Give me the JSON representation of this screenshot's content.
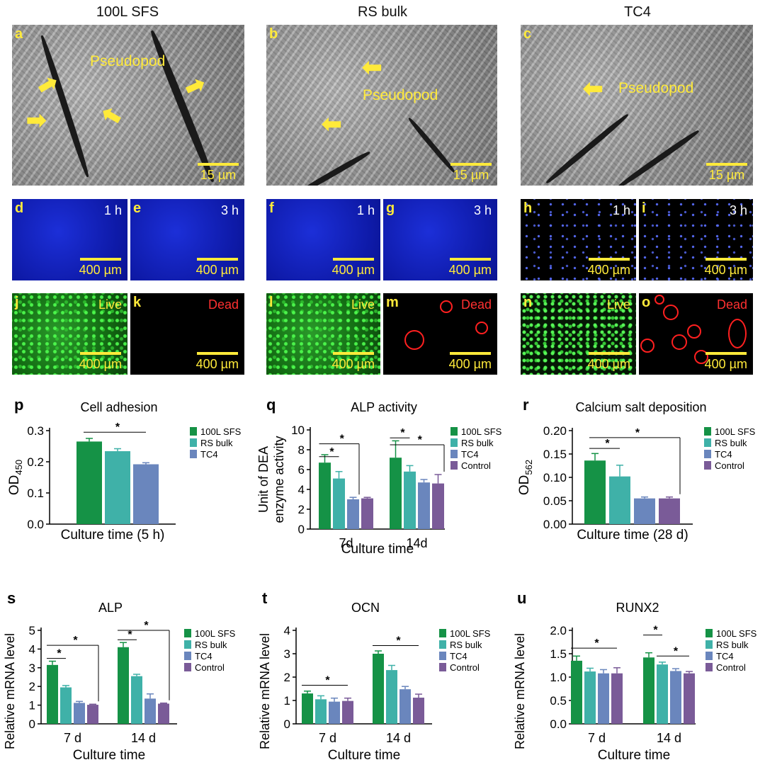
{
  "columns": [
    "100L SFS",
    "RS bulk",
    "TC4"
  ],
  "sem_panels": [
    {
      "label": "a",
      "text": "Pseudopod",
      "scale": "15 µm"
    },
    {
      "label": "b",
      "text": "Pseudopod",
      "scale": "15 µm"
    },
    {
      "label": "c",
      "text": "Pseudopod",
      "scale": "15 µm"
    }
  ],
  "fluor_panels": [
    {
      "label": "d",
      "time": "1 h",
      "scale": "400 µm"
    },
    {
      "label": "e",
      "time": "3 h",
      "scale": "400 µm"
    },
    {
      "label": "f",
      "time": "1 h",
      "scale": "400 µm"
    },
    {
      "label": "g",
      "time": "3 h",
      "scale": "400 µm"
    },
    {
      "label": "h",
      "time": "1 h",
      "scale": "400 µm"
    },
    {
      "label": "i",
      "time": "3 h",
      "scale": "400 µm"
    }
  ],
  "livedead_panels": [
    {
      "label": "j",
      "stain": "Live",
      "scale": "400 µm"
    },
    {
      "label": "k",
      "stain": "Dead",
      "scale": "400 µm"
    },
    {
      "label": "l",
      "stain": "Live",
      "scale": "400 µm"
    },
    {
      "label": "m",
      "stain": "Dead",
      "scale": "400 µm"
    },
    {
      "label": "n",
      "stain": "Live",
      "scale": "400 µm"
    },
    {
      "label": "o",
      "stain": "Dead",
      "scale": "400 µm"
    }
  ],
  "colors": {
    "sfs": "#159246",
    "rs": "#3fb1a8",
    "tc4": "#6a86bd",
    "control": "#7a5b98",
    "sem_text": "#ffea3a",
    "dead_text": "#ff3030"
  },
  "star": "*",
  "chart_data": [
    {
      "id": "p",
      "type": "bar",
      "title": "Cell adhesion",
      "ylabel": "OD",
      "ylabel_sub": "450",
      "xlabel": "Culture time (5 h)",
      "ylim": [
        0,
        0.3
      ],
      "yticks": [
        "0.0",
        "0.1",
        "0.2",
        "0.3"
      ],
      "tickvals": [
        0,
        0.1,
        0.2,
        0.3
      ],
      "legend": [
        "100L SFS",
        "RS bulk",
        "TC4"
      ],
      "categories": [
        ""
      ],
      "series": [
        {
          "name": "100L SFS",
          "values": [
            0.265
          ],
          "err": [
            0.01
          ]
        },
        {
          "name": "RS bulk",
          "values": [
            0.234
          ],
          "err": [
            0.008
          ]
        },
        {
          "name": "TC4",
          "values": [
            0.192
          ],
          "err": [
            0.005
          ]
        }
      ]
    },
    {
      "id": "q",
      "type": "bar",
      "title": "ALP activity",
      "ylabel": "Unit of DEA",
      "ylabel2": "enzyme activity",
      "xlabel": "Culture time",
      "ylim": [
        0,
        10
      ],
      "yticks": [
        "0",
        "2",
        "4",
        "6",
        "8",
        "10"
      ],
      "tickvals": [
        0,
        2,
        4,
        6,
        8,
        10
      ],
      "legend": [
        "100L SFS",
        "RS bulk",
        "TC4",
        "Control"
      ],
      "categories": [
        "7d",
        "14d"
      ],
      "series": [
        {
          "name": "100L SFS",
          "values": [
            6.7,
            7.2
          ],
          "err": [
            0.8,
            1.7
          ]
        },
        {
          "name": "RS bulk",
          "values": [
            5.1,
            5.8
          ],
          "err": [
            0.7,
            0.6
          ]
        },
        {
          "name": "TC4",
          "values": [
            3.0,
            4.7
          ],
          "err": [
            0.2,
            0.3
          ]
        },
        {
          "name": "Control",
          "values": [
            3.1,
            4.6
          ],
          "err": [
            0.1,
            0.9
          ]
        }
      ]
    },
    {
      "id": "r",
      "type": "bar",
      "title": "Calcium salt deposition",
      "ylabel": "OD",
      "ylabel_sub": "562",
      "xlabel": "Culture time (28 d)",
      "ylim": [
        0,
        0.2
      ],
      "yticks": [
        "0.00",
        "0.05",
        "0.10",
        "0.15",
        "0.20"
      ],
      "tickvals": [
        0,
        0.05,
        0.1,
        0.15,
        0.2
      ],
      "legend": [
        "100L SFS",
        "RS bulk",
        "TC4",
        "Control"
      ],
      "categories": [
        ""
      ],
      "series": [
        {
          "name": "100L SFS",
          "values": [
            0.136
          ],
          "err": [
            0.015
          ]
        },
        {
          "name": "RS bulk",
          "values": [
            0.102
          ],
          "err": [
            0.024
          ]
        },
        {
          "name": "TC4",
          "values": [
            0.055
          ],
          "err": [
            0.003
          ]
        },
        {
          "name": "Control",
          "values": [
            0.055
          ],
          "err": [
            0.003
          ]
        }
      ]
    },
    {
      "id": "s",
      "type": "bar",
      "title": "ALP",
      "ylabel": "Relative mRNA level",
      "xlabel": "Culture time",
      "ylim": [
        0,
        5
      ],
      "yticks": [
        "0",
        "1",
        "2",
        "3",
        "4",
        "5"
      ],
      "tickvals": [
        0,
        1,
        2,
        3,
        4,
        5
      ],
      "legend": [
        "100L SFS",
        "RS bulk",
        "TC4",
        "Control"
      ],
      "categories": [
        "7 d",
        "14 d"
      ],
      "series": [
        {
          "name": "100L SFS",
          "values": [
            3.15,
            4.1
          ],
          "err": [
            0.2,
            0.25
          ]
        },
        {
          "name": "RS bulk",
          "values": [
            1.95,
            2.55
          ],
          "err": [
            0.1,
            0.1
          ]
        },
        {
          "name": "TC4",
          "values": [
            1.12,
            1.35
          ],
          "err": [
            0.08,
            0.25
          ]
        },
        {
          "name": "Control",
          "values": [
            1.02,
            1.08
          ],
          "err": [
            0.03,
            0.03
          ]
        }
      ]
    },
    {
      "id": "t",
      "type": "bar",
      "title": "OCN",
      "ylabel": "Relative mRNA level",
      "xlabel": "Culture time",
      "ylim": [
        0,
        4
      ],
      "yticks": [
        "0",
        "1",
        "2",
        "3",
        "4"
      ],
      "tickvals": [
        0,
        1,
        2,
        3,
        4
      ],
      "legend": [
        "100L SFS",
        "RS bulk",
        "TC4",
        "Control"
      ],
      "categories": [
        "7 d",
        "14 d"
      ],
      "series": [
        {
          "name": "100L SFS",
          "values": [
            1.3,
            3.0
          ],
          "err": [
            0.1,
            0.12
          ]
        },
        {
          "name": "RS bulk",
          "values": [
            1.05,
            2.3
          ],
          "err": [
            0.15,
            0.2
          ]
        },
        {
          "name": "TC4",
          "values": [
            0.95,
            1.48
          ],
          "err": [
            0.15,
            0.12
          ]
        },
        {
          "name": "Control",
          "values": [
            0.98,
            1.12
          ],
          "err": [
            0.12,
            0.15
          ]
        }
      ]
    },
    {
      "id": "u",
      "type": "bar",
      "title": "RUNX2",
      "ylabel": "Relative mRNA level",
      "xlabel": "Culture time",
      "ylim": [
        0,
        2.0
      ],
      "yticks": [
        "0.0",
        "0.5",
        "1.0",
        "1.5",
        "2.0"
      ],
      "tickvals": [
        0,
        0.5,
        1.0,
        1.5,
        2.0
      ],
      "legend": [
        "100L SFS",
        "RS bulk",
        "TC4",
        "Control"
      ],
      "categories": [
        "7 d",
        "14 d"
      ],
      "series": [
        {
          "name": "100L SFS",
          "values": [
            1.35,
            1.42
          ],
          "err": [
            0.1,
            0.1
          ]
        },
        {
          "name": "RS bulk",
          "values": [
            1.12,
            1.27
          ],
          "err": [
            0.07,
            0.05
          ]
        },
        {
          "name": "TC4",
          "values": [
            1.08,
            1.13
          ],
          "err": [
            0.08,
            0.05
          ]
        },
        {
          "name": "Control",
          "values": [
            1.08,
            1.08
          ],
          "err": [
            0.12,
            0.04
          ]
        }
      ]
    }
  ]
}
